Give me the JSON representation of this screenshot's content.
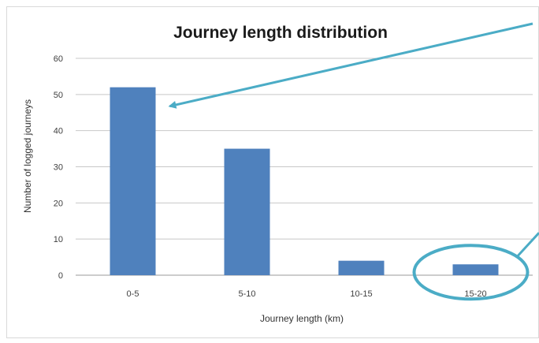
{
  "chart_data": {
    "type": "bar",
    "title": "Journey length distribution",
    "xlabel": "Journey length (km)",
    "ylabel": "Number of logged journeys",
    "categories": [
      "0-5",
      "5-10",
      "10-15",
      "15-20"
    ],
    "values": [
      52,
      35,
      4,
      3
    ],
    "ylim": [
      0,
      60
    ],
    "yticks": [
      0,
      10,
      20,
      30,
      40,
      50,
      60
    ],
    "grid": true,
    "legend": "none",
    "bar_color": "#4f81bd",
    "annotation_color": "#4bacc6",
    "annotations": [
      {
        "kind": "arrow",
        "target_category": "0-5"
      },
      {
        "kind": "ellipse",
        "target_category": "15-20"
      }
    ]
  }
}
